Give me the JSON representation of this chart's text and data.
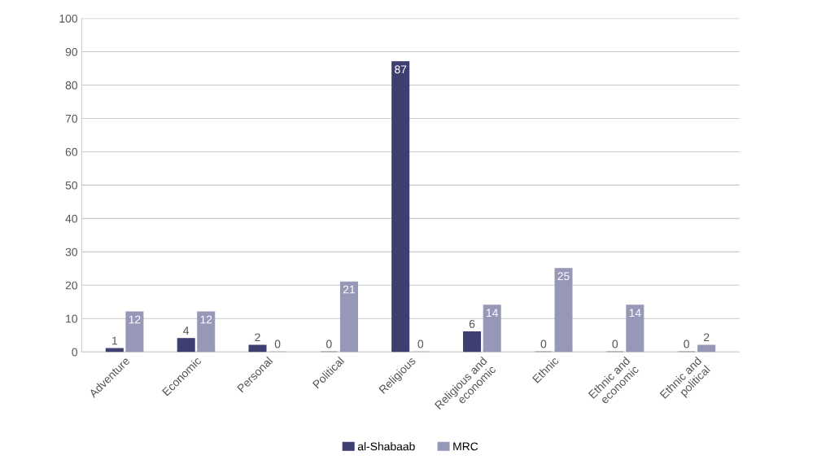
{
  "chart_data": {
    "type": "bar",
    "categories": [
      "Adventure",
      "Economic",
      "Personal",
      "Political",
      "Religious",
      "Religious and\neconomic",
      "Ethnic",
      "Ethnic and\neconomic",
      "Ethnic and\npolitical"
    ],
    "series": [
      {
        "name": "al-Shabaab",
        "color": "#3e3f70",
        "values": [
          1,
          4,
          2,
          0,
          87,
          6,
          0,
          0,
          0
        ]
      },
      {
        "name": "MRC",
        "color": "#9797b7",
        "values": [
          12,
          12,
          0,
          21,
          0,
          14,
          25,
          14,
          2
        ]
      }
    ],
    "ylim": [
      0,
      100
    ],
    "yticks": [
      0,
      10,
      20,
      30,
      40,
      50,
      60,
      70,
      80,
      90,
      100
    ],
    "grid": "y",
    "legend": "bottom",
    "data_labels": true
  }
}
